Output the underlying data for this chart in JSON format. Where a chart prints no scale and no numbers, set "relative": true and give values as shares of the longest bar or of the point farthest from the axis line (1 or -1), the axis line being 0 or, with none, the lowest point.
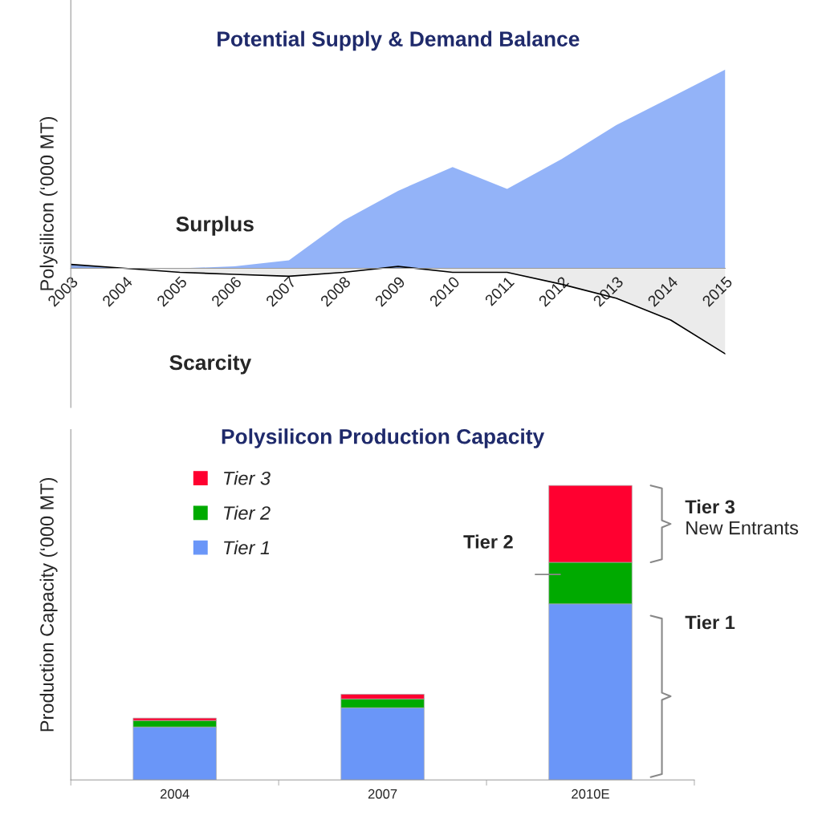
{
  "chart_data": [
    {
      "type": "area",
      "title": "Potential Supply & Demand Balance",
      "ylabel": "Polysilicon (‘000 MT)",
      "relative": true,
      "categories": [
        "2003",
        "2004",
        "2005",
        "2006",
        "2007",
        "2008",
        "2009",
        "2010",
        "2011",
        "2012",
        "2013",
        "2014",
        "2015"
      ],
      "series": [
        {
          "color": "#6f9af5",
          "values": [
            0.02,
            0,
            0,
            0.01,
            0.04,
            0.24,
            0.39,
            0.51,
            0.4,
            0.55,
            0.72,
            0.86,
            1
          ]
        },
        {
          "color": "#000000",
          "values": [
            0.02,
            0,
            -0.02,
            -0.03,
            -0.04,
            -0.02,
            0.01,
            -0.02,
            -0.02,
            -0.08,
            -0.15,
            -0.26,
            -0.43
          ]
        }
      ],
      "annotations": [
        "Surplus",
        "Scarcity"
      ]
    },
    {
      "type": "bar",
      "title": "Polysilicon Production Capacity",
      "ylabel": "Production Capacity (‘000 MT)",
      "relative": true,
      "stacked": true,
      "legend": "top left",
      "categories": [
        "2004",
        "2007",
        "2010E"
      ],
      "series": [
        {
          "name": "Tier 1",
          "color": "#6a96f8",
          "values": [
            0.18,
            0.245,
            0.598
          ]
        },
        {
          "name": "Tier 2",
          "color": "#00aa00",
          "values": [
            0.022,
            0.03,
            0.141
          ]
        },
        {
          "name": "Tier 3",
          "color": "#ff0030",
          "values": [
            0.008,
            0.016,
            0.261
          ]
        }
      ],
      "annotations": [
        "Tier 2",
        "Tier 3\nNew Entrants",
        "Tier 1"
      ]
    }
  ]
}
